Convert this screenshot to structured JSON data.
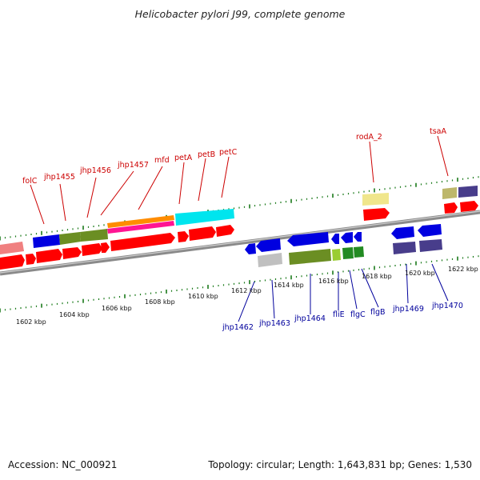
{
  "title": "Helicobacter pylori J99, complete genome",
  "footer": {
    "accession": "Accession: NC_000921",
    "topology": "Topology: circular; Length: 1,643,831 bp; Genes: 1,530"
  },
  "kbp_ticks": [
    "1602 kbp",
    "1604 kbp",
    "1606 kbp",
    "1608 kbp",
    "1610 kbp",
    "1612 kbp",
    "1614 kbp",
    "1616 kbp",
    "1618 kbp",
    "1620 kbp",
    "1622 kbp"
  ],
  "top_labels": [
    "folC",
    "jhp1455",
    "jhp1456",
    "jhp1457",
    "mfd",
    "petA",
    "petB",
    "petC",
    "rodA_2",
    "tsaA"
  ],
  "bottom_labels": [
    "jhp1462",
    "jhp1463",
    "jhp1464",
    "fliE",
    "flgC",
    "flgB",
    "jhp1469",
    "jhp1470"
  ],
  "colors": {
    "label_top": "#cc0000",
    "label_bottom": "#00009c",
    "backbone": "#8a8a8a",
    "ticks": "#1a7a1a",
    "gene_red": "#ff0000",
    "gene_blue": "#0000e0",
    "gene_olive": "#6b8e23",
    "gene_cyan": "#00e5ee",
    "gene_orange": "#ff8c00",
    "gene_magenta": "#ff1493",
    "gene_pink": "#f08080",
    "gene_khaki": "#f0e68c",
    "gene_tan": "#bdb76b",
    "gene_slate": "#483d8b",
    "gene_grey": "#c0c0c0",
    "gene_green": "#228b22",
    "gene_lime": "#9acd32"
  }
}
